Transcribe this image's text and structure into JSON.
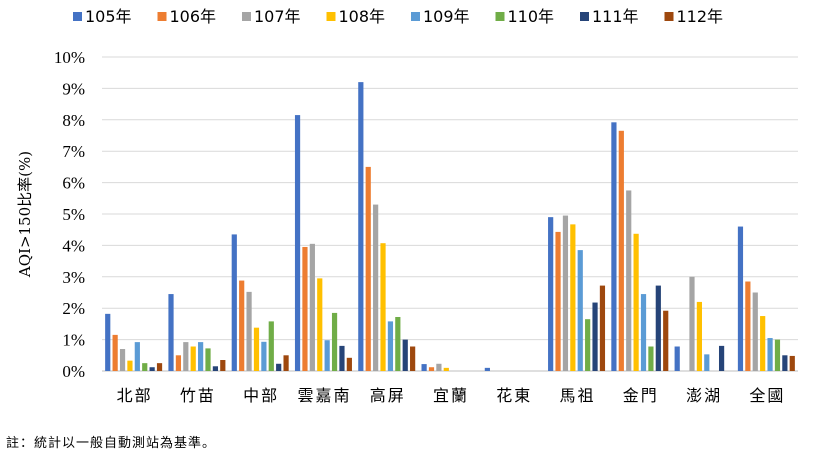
{
  "chart_data": {
    "type": "bar",
    "ylabel": "AQI>150比率(%)",
    "ylim": [
      0,
      10
    ],
    "yticks": [
      "0%",
      "1%",
      "2%",
      "3%",
      "4%",
      "5%",
      "6%",
      "7%",
      "8%",
      "9%",
      "10%"
    ],
    "legend_position": "top",
    "grid": true,
    "categories": [
      "北部",
      "竹苗",
      "中部",
      "雲嘉南",
      "高屏",
      "宜蘭",
      "花東",
      "馬祖",
      "金門",
      "澎湖",
      "全國"
    ],
    "series": [
      {
        "name": "105年",
        "color": "#4472C4",
        "values": [
          1.82,
          2.45,
          4.35,
          8.15,
          9.2,
          0.22,
          0.1,
          4.9,
          7.92,
          0.78,
          4.6
        ]
      },
      {
        "name": "106年",
        "color": "#ED7D31",
        "values": [
          1.15,
          0.5,
          2.88,
          3.95,
          6.5,
          0.12,
          0,
          4.43,
          7.65,
          0,
          2.85
        ]
      },
      {
        "name": "107年",
        "color": "#A5A5A5",
        "values": [
          0.7,
          0.92,
          2.52,
          4.05,
          5.3,
          0.23,
          0,
          4.95,
          5.75,
          3.0,
          2.5
        ]
      },
      {
        "name": "108年",
        "color": "#FFC000",
        "values": [
          0.33,
          0.78,
          1.38,
          2.95,
          4.07,
          0.1,
          0,
          4.67,
          4.37,
          2.2,
          1.75
        ]
      },
      {
        "name": "109年",
        "color": "#5B9BD5",
        "values": [
          0.92,
          0.92,
          0.93,
          0.98,
          1.58,
          0,
          0,
          3.85,
          2.45,
          0.53,
          1.05
        ]
      },
      {
        "name": "110年",
        "color": "#70AD47",
        "values": [
          0.25,
          0.72,
          1.58,
          1.85,
          1.72,
          0,
          0,
          1.65,
          0.78,
          0,
          1.0
        ]
      },
      {
        "name": "111年",
        "color": "#264478",
        "values": [
          0.12,
          0.15,
          0.23,
          0.8,
          1.0,
          0,
          0,
          2.18,
          2.72,
          0.8,
          0.5
        ]
      },
      {
        "name": "112年",
        "color": "#9E480E",
        "values": [
          0.25,
          0.35,
          0.5,
          0.42,
          0.78,
          0,
          0,
          2.72,
          1.92,
          0,
          0.48
        ]
      }
    ]
  },
  "note": "註：統計以一般自動測站為基準。"
}
